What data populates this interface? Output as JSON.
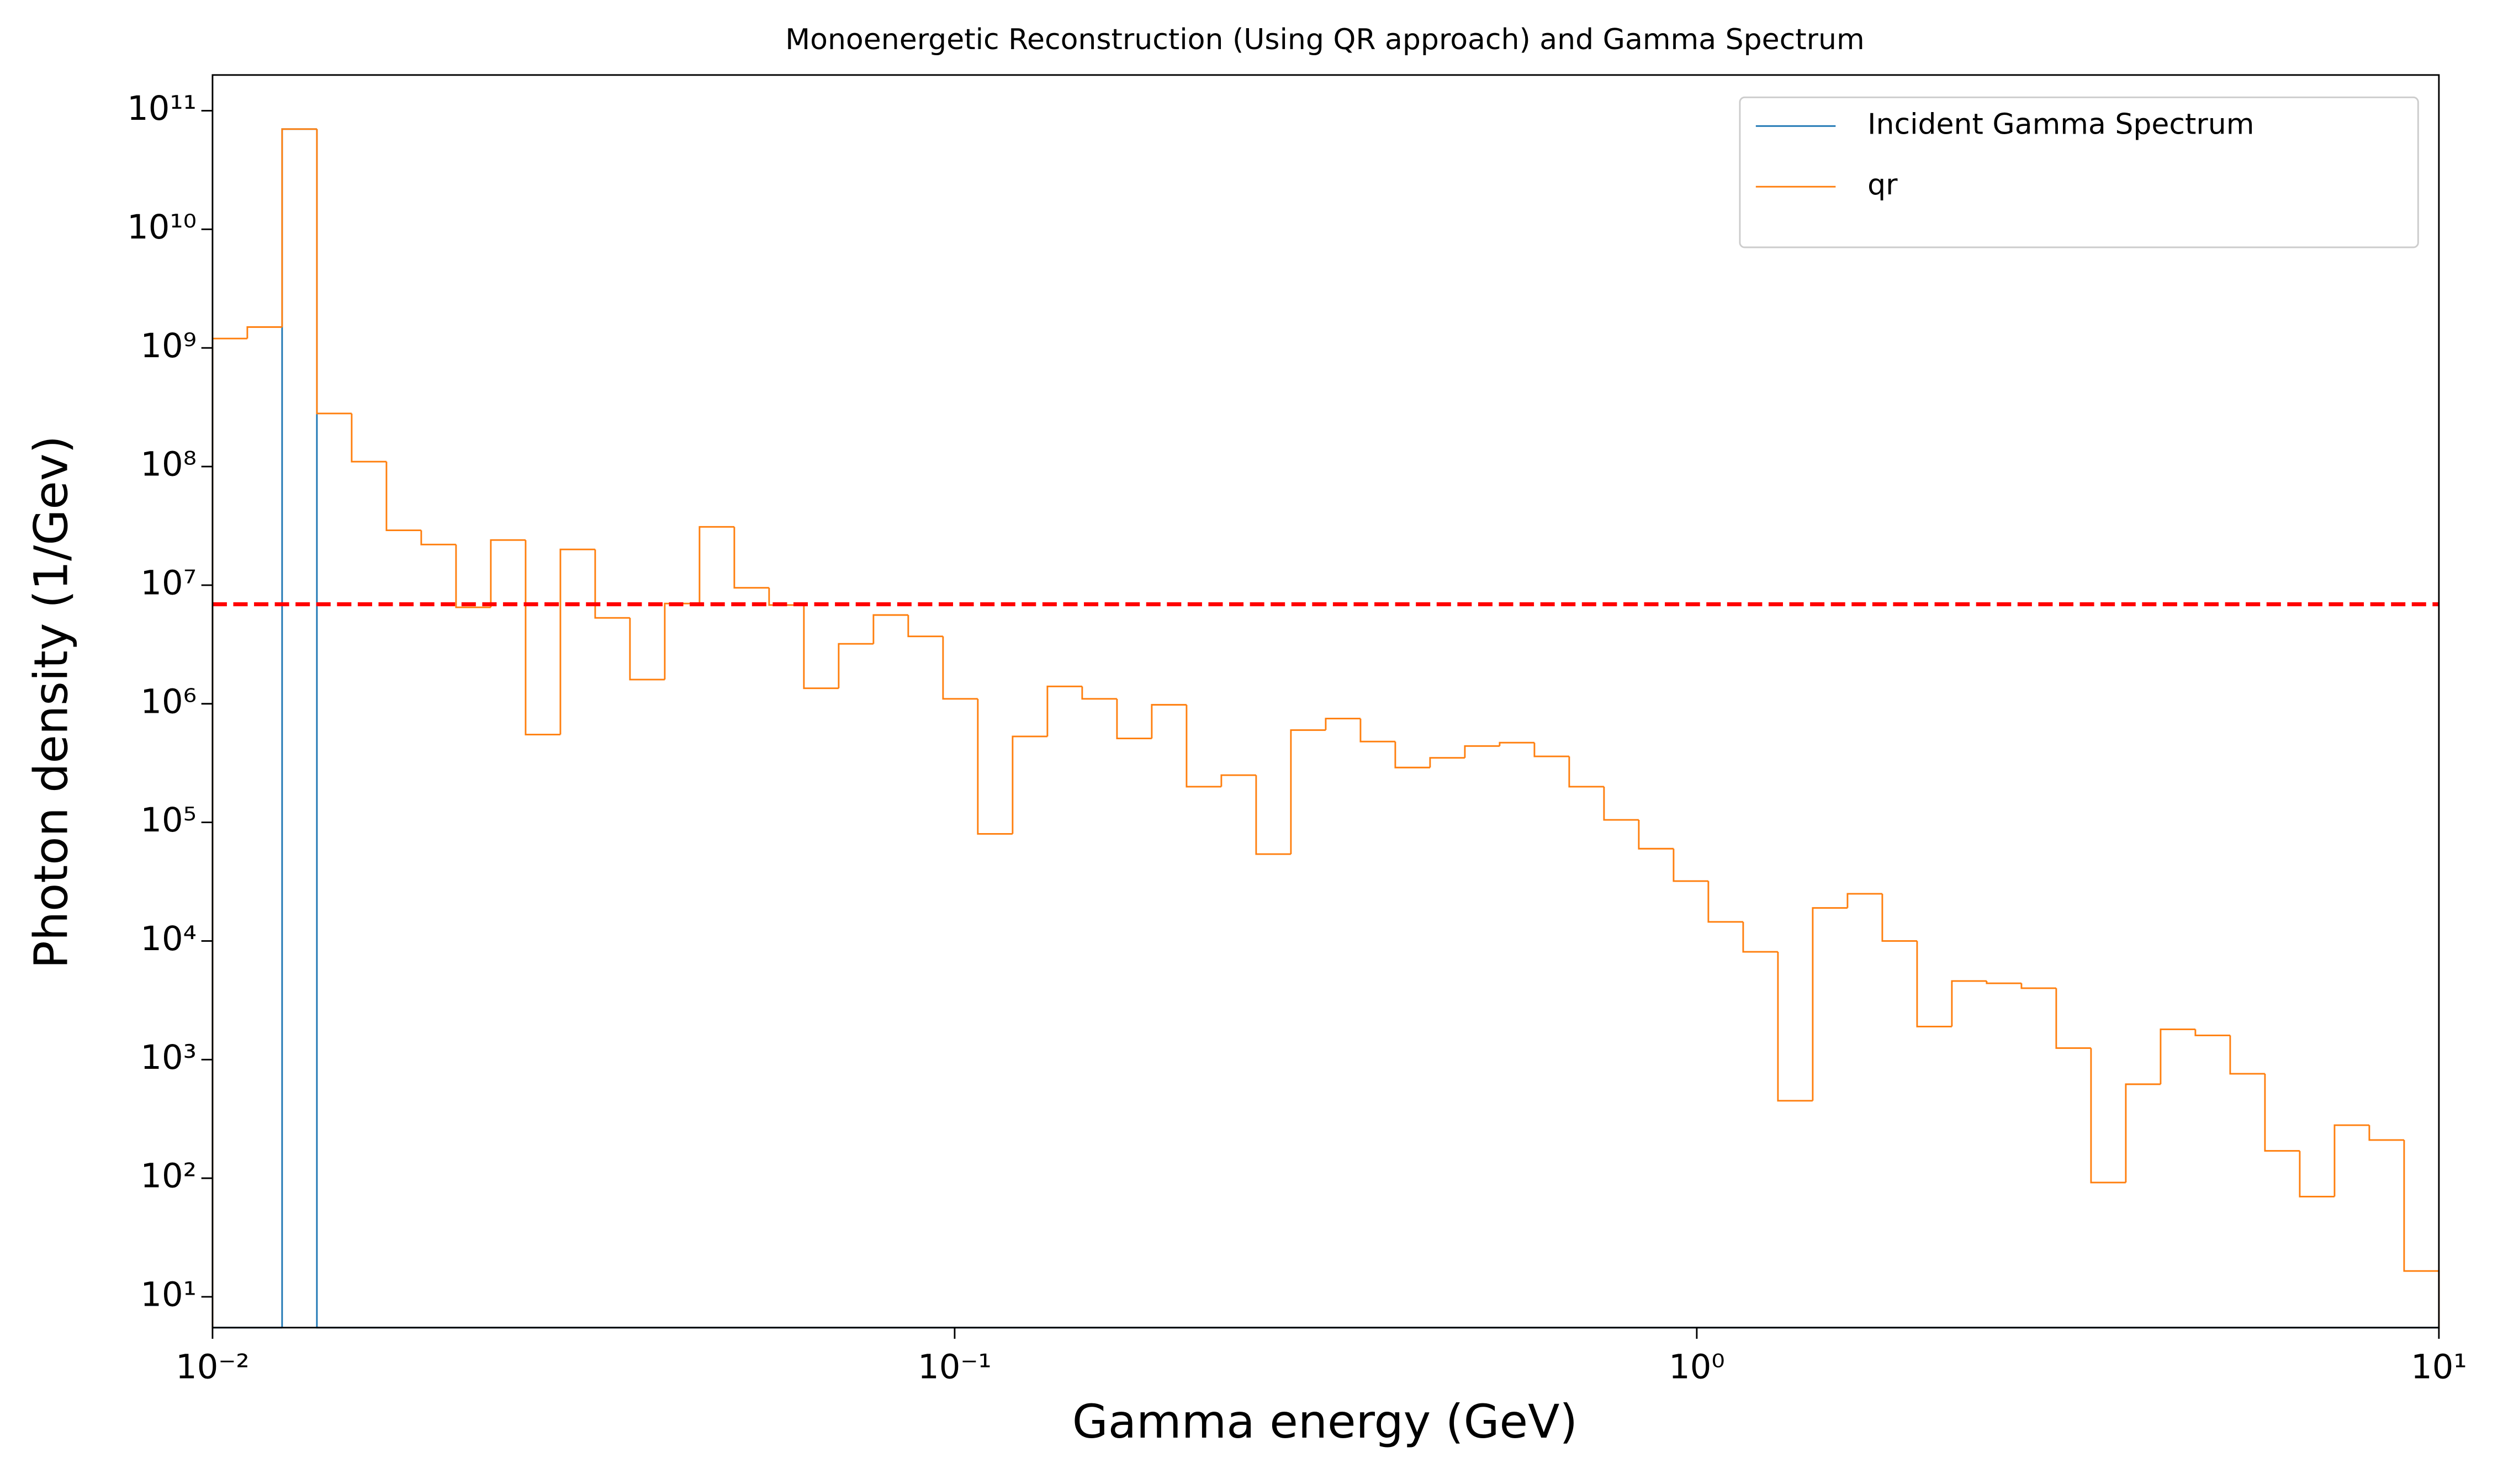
{
  "chart_data": {
    "type": "histogram",
    "title": "Monoenergetic Reconstruction (Using QR approach) and Gamma Spectrum",
    "xlabel": "Gamma energy (GeV)",
    "ylabel": "Photon density (1/Gev)",
    "xscale": "log",
    "yscale": "log",
    "xlim": [
      0.01,
      10
    ],
    "ylim": [
      5.5,
      200000000000.0
    ],
    "xticks": [
      {
        "value": 0.01,
        "label": "10⁻²"
      },
      {
        "value": 0.1,
        "label": "10⁻¹"
      },
      {
        "value": 1,
        "label": "10⁰"
      },
      {
        "value": 10,
        "label": "10¹"
      }
    ],
    "yticks": [
      {
        "value": 10,
        "label": "10¹"
      },
      {
        "value": 100,
        "label": "10²"
      },
      {
        "value": 1000,
        "label": "10³"
      },
      {
        "value": 10000,
        "label": "10⁴"
      },
      {
        "value": 100000,
        "label": "10⁵"
      },
      {
        "value": 1000000,
        "label": "10⁶"
      },
      {
        "value": 10000000,
        "label": "10⁷"
      },
      {
        "value": 100000000,
        "label": "10⁸"
      },
      {
        "value": 1000000000,
        "label": "10⁹"
      },
      {
        "value": 10000000000,
        "label": "10¹⁰"
      },
      {
        "value": 100000000000,
        "label": "10¹¹"
      }
    ],
    "bins": [
      0.01,
      0.01114,
      0.012409,
      0.013824,
      0.015399,
      0.017154,
      0.019109,
      0.021287,
      0.023713,
      0.026416,
      0.029427,
      0.03278,
      0.036516,
      0.040678,
      0.045313,
      0.050478,
      0.05623,
      0.06264,
      0.069779,
      0.077731,
      0.08659,
      0.096459,
      0.10745,
      0.1197,
      0.13335,
      0.14854,
      0.16548,
      0.18433,
      0.20535,
      0.22875,
      0.25482,
      0.28386,
      0.31623,
      0.35227,
      0.39242,
      0.43714,
      0.48697,
      0.54247,
      0.60429,
      0.67316,
      0.74989,
      0.83536,
      0.93057,
      1.0366,
      1.1548,
      1.2864,
      1.433,
      1.5963,
      1.7783,
      1.981,
      2.2067,
      2.4582,
      2.7384,
      3.0505,
      3.3982,
      3.7855,
      4.217,
      4.6976,
      5.233,
      5.8294,
      6.4938,
      7.2339,
      8.0584,
      8.9769,
      10
    ],
    "series": [
      {
        "name": "Incident Gamma Spectrum",
        "color": "#1f77b4",
        "values": [
          0,
          0,
          70000000000,
          0,
          0,
          0,
          0,
          0,
          0,
          0,
          0,
          0,
          0,
          0,
          0,
          0,
          0,
          0,
          0,
          0,
          0,
          0,
          0,
          0,
          0,
          0,
          0,
          0,
          0,
          0,
          0,
          0,
          0,
          0,
          0,
          0,
          0,
          0,
          0,
          0,
          0,
          0,
          0,
          0,
          0,
          0,
          0,
          0,
          0,
          0,
          0,
          0,
          0,
          0,
          0,
          0,
          0,
          0,
          0,
          0,
          0,
          0,
          0,
          0
        ]
      },
      {
        "name": "qr",
        "color": "#ff7f0e",
        "values": [
          1200000000,
          1500000000,
          70000000000,
          280000000,
          110000000,
          29000000,
          22000000,
          6500000,
          24000000,
          550000,
          20000000,
          5300000,
          1600000,
          7000000,
          31000000,
          9500000,
          6800000,
          1350000,
          3200000,
          5600000,
          3700000,
          1100000,
          80000,
          530000,
          1400000,
          1100000,
          510000,
          980000,
          200000,
          250000,
          54000,
          600000,
          750000,
          480000,
          290000,
          350000,
          440000,
          470000,
          360000,
          200000,
          105000,
          60000,
          32000,
          14500,
          8100,
          450,
          19000,
          25000,
          10000,
          1900,
          4600,
          4400,
          4000,
          1250,
          92,
          620,
          1800,
          1600,
          760,
          170,
          70,
          280,
          210,
          16.5
        ]
      }
    ],
    "hline": {
      "value": 6900000,
      "color": "#ff0000",
      "style": "dashed"
    },
    "legend": "upper right"
  }
}
